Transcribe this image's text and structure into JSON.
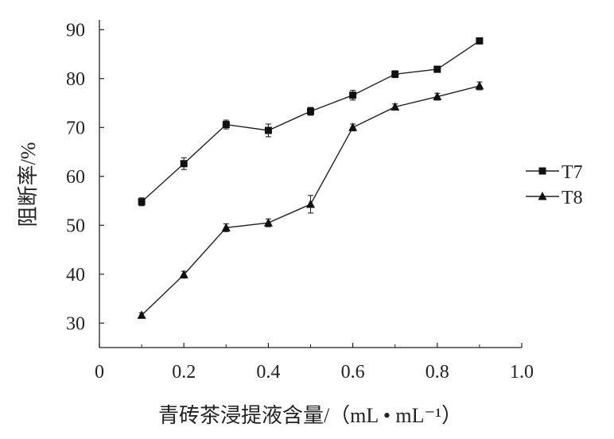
{
  "chart_data": {
    "type": "line",
    "title": "",
    "xlabel": "青砖茶浸提液含量/（mL • mL⁻¹）",
    "ylabel": "阻断率/%",
    "xlim": [
      0,
      1.0
    ],
    "ylim": [
      25,
      92
    ],
    "xticks": [
      0,
      0.2,
      0.4,
      0.6,
      0.8,
      1.0
    ],
    "xtick_labels": [
      "0",
      "0.2",
      "0.4",
      "0.6",
      "0.8",
      "1.0"
    ],
    "yticks": [
      30,
      40,
      50,
      60,
      70,
      80,
      90
    ],
    "ytick_labels": [
      "30",
      "40",
      "50",
      "60",
      "70",
      "80",
      "90"
    ],
    "grid": false,
    "legend": "right",
    "x": [
      0.1,
      0.2,
      0.3,
      0.4,
      0.5,
      0.6,
      0.7,
      0.8,
      0.9
    ],
    "series": [
      {
        "name": "T7",
        "marker": "square",
        "values": [
          54.8,
          62.6,
          70.6,
          69.4,
          73.3,
          76.6,
          80.9,
          81.9,
          87.7
        ],
        "errors": [
          0.8,
          1.2,
          0.9,
          1.3,
          0.8,
          1.0,
          0.7,
          0.6,
          0.5
        ]
      },
      {
        "name": "T8",
        "marker": "triangle",
        "values": [
          31.6,
          39.9,
          49.5,
          50.5,
          54.3,
          70.0,
          74.2,
          76.3,
          78.5
        ],
        "errors": [
          0.5,
          0.7,
          0.8,
          0.8,
          1.8,
          0.7,
          0.6,
          0.7,
          0.8
        ]
      }
    ]
  }
}
